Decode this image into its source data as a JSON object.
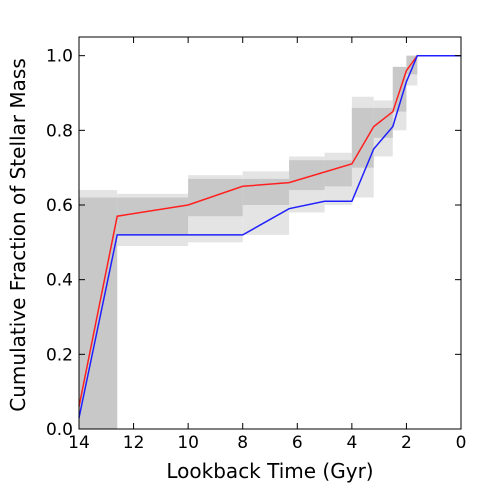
{
  "chart_data": {
    "type": "line",
    "title": "",
    "xlabel": "Lookback Time (Gyr)",
    "ylabel": "Cumulative Fraction of Stellar Mass",
    "xlim": [
      14,
      0
    ],
    "ylim": [
      0.0,
      1.05
    ],
    "x_inverted": true,
    "xticks": [
      14,
      12,
      10,
      8,
      6,
      4,
      2,
      0
    ],
    "xtick_labels": [
      "14",
      "12",
      "10",
      "8",
      "6",
      "4",
      "2",
      "0"
    ],
    "yticks": [
      0.0,
      0.2,
      0.4,
      0.6,
      0.8,
      1.0
    ],
    "ytick_labels": [
      "0.0",
      "0.2",
      "0.4",
      "0.6",
      "0.8",
      "1.0"
    ],
    "grid": false,
    "legend": "none",
    "series": [
      {
        "color": "#ff2020",
        "x": [
          14.0,
          12.6,
          10.0,
          8.0,
          6.3,
          4.0,
          3.2,
          2.5,
          2.0,
          1.6,
          0.0
        ],
        "y": [
          0.06,
          0.57,
          0.6,
          0.65,
          0.66,
          0.71,
          0.81,
          0.85,
          0.96,
          1.0,
          1.0
        ]
      },
      {
        "color": "#2020ff",
        "x": [
          14.0,
          12.6,
          10.0,
          8.0,
          6.3,
          5.0,
          4.0,
          3.2,
          2.5,
          2.0,
          1.6,
          0.0
        ],
        "y": [
          0.03,
          0.52,
          0.52,
          0.52,
          0.59,
          0.61,
          0.61,
          0.75,
          0.81,
          0.93,
          1.0,
          1.0
        ]
      }
    ],
    "uncertainty_bands": [
      {
        "color": "#e4e4e4",
        "bins": [
          {
            "x": [
              14.0,
              12.6
            ],
            "y": [
              0.0,
              0.64
            ]
          },
          {
            "x": [
              12.6,
              10.0
            ],
            "y": [
              0.49,
              0.63
            ]
          },
          {
            "x": [
              10.0,
              8.0
            ],
            "y": [
              0.5,
              0.68
            ]
          },
          {
            "x": [
              8.0,
              6.3
            ],
            "y": [
              0.52,
              0.69
            ]
          },
          {
            "x": [
              6.3,
              5.0
            ],
            "y": [
              0.58,
              0.73
            ]
          },
          {
            "x": [
              5.0,
              4.0
            ],
            "y": [
              0.6,
              0.74
            ]
          },
          {
            "x": [
              4.0,
              3.2
            ],
            "y": [
              0.62,
              0.89
            ]
          },
          {
            "x": [
              3.2,
              2.5
            ],
            "y": [
              0.73,
              0.88
            ]
          },
          {
            "x": [
              2.5,
              2.0
            ],
            "y": [
              0.8,
              0.97
            ]
          },
          {
            "x": [
              2.0,
              1.6
            ],
            "y": [
              0.92,
              1.0
            ]
          }
        ]
      },
      {
        "color": "#c8c8c8",
        "bins": [
          {
            "x": [
              14.0,
              12.6
            ],
            "y": [
              0.0,
              0.62
            ]
          },
          {
            "x": [
              12.6,
              10.0
            ],
            "y": [
              0.52,
              0.62
            ]
          },
          {
            "x": [
              10.0,
              8.0
            ],
            "y": [
              0.57,
              0.67
            ]
          },
          {
            "x": [
              8.0,
              6.3
            ],
            "y": [
              0.6,
              0.67
            ]
          },
          {
            "x": [
              6.3,
              5.0
            ],
            "y": [
              0.64,
              0.72
            ]
          },
          {
            "x": [
              5.0,
              4.0
            ],
            "y": [
              0.65,
              0.72
            ]
          },
          {
            "x": [
              4.0,
              3.2
            ],
            "y": [
              0.7,
              0.86
            ]
          },
          {
            "x": [
              3.2,
              2.5
            ],
            "y": [
              0.78,
              0.86
            ]
          },
          {
            "x": [
              2.5,
              2.0
            ],
            "y": [
              0.85,
              0.97
            ]
          },
          {
            "x": [
              2.0,
              1.6
            ],
            "y": [
              0.95,
              1.0
            ]
          }
        ]
      }
    ]
  }
}
